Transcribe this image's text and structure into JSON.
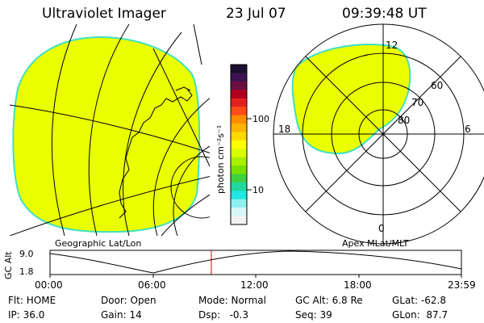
{
  "header": {
    "instrument": "Ultraviolet Imager",
    "date": "23 Jul 07",
    "time": "09:39:48 UT"
  },
  "colorbar": {
    "label": "photon cm⁻²s⁻¹",
    "ticks": [
      "100",
      "10"
    ],
    "colors": [
      "#1a0f2e",
      "#3a1250",
      "#6a1040",
      "#b00020",
      "#e02020",
      "#ff4a1a",
      "#ff8c00",
      "#ffb400",
      "#ffd800",
      "#ffff00",
      "#d8ff00",
      "#a8f000",
      "#78e000",
      "#40d040",
      "#20d8a0",
      "#20e8e0",
      "#90f0f0",
      "#d8f8f8",
      "#f2f2f2"
    ]
  },
  "left_panel": {
    "label": "Geographic Lat/Lon",
    "fill_color": "#eaff00",
    "rim_color": "#40e0c0"
  },
  "right_panel": {
    "label": "Apex MLat/MLT",
    "mlt_labels": {
      "top": "12",
      "left": "18",
      "right": "6",
      "bottom": "0"
    },
    "lat_labels": [
      "60",
      "70",
      "80"
    ],
    "fill_color": "#eaff00"
  },
  "altitude_plot": {
    "ylabel": "GC Alt",
    "yticks": [
      "9.0",
      "1.8"
    ],
    "xticks": [
      "00:00",
      "06:00",
      "12:00",
      "18:00",
      "23:59"
    ],
    "marker_color": "#d00000"
  },
  "status": {
    "flt": "Flt: HOME",
    "ip": "IP: 36.0",
    "door": "Door: Open",
    "gain": "Gain: 14",
    "mode": "Mode: Normal",
    "dsp": "Dsp:   -0.3",
    "gc_alt": "GC Alt: 6.8 Re",
    "seq": "Seq: 39",
    "glat": "GLat: -62.8",
    "glon": "GLon:  87.7"
  }
}
